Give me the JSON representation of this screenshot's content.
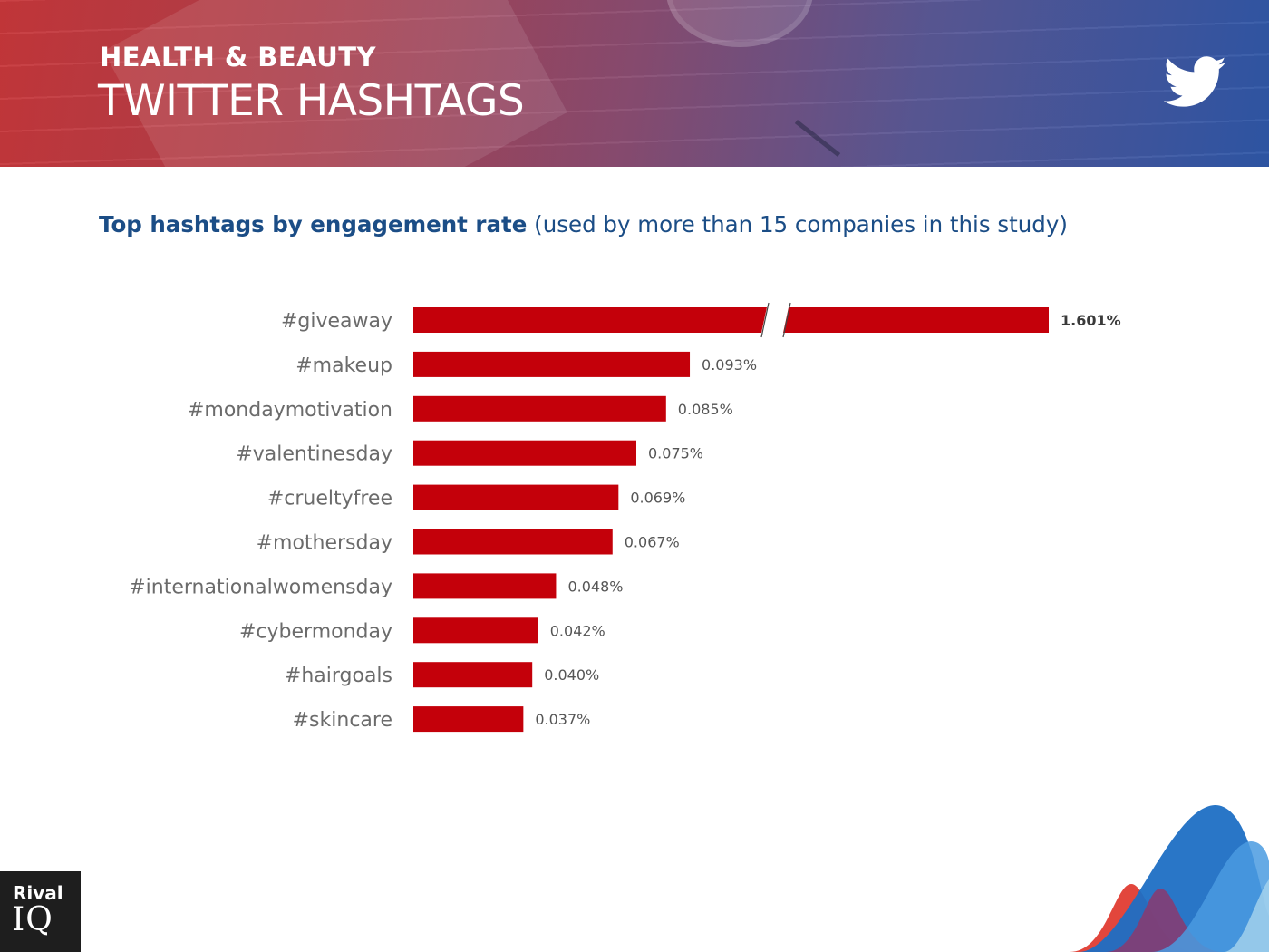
{
  "header": {
    "kicker": "HEALTH & BEAUTY",
    "title": "TWITTER HASHTAGS"
  },
  "subtitle": {
    "strong": "Top hashtags by engagement rate",
    "rest": "(used by more than 15 companies in this study)"
  },
  "logo": {
    "top": "Rival",
    "bottom": "IQ"
  },
  "icons": {
    "header": "twitter-bird-icon",
    "corner": "rival-iq-wave-graphic"
  },
  "colors": {
    "bar": "#c4000a",
    "subtitle": "#1b4d86",
    "category_label": "#6b6b6b",
    "value_label": "#555555",
    "value_label_highlight": "#3a3a3a"
  },
  "chart_data": {
    "type": "bar",
    "orientation": "horizontal",
    "axis_break": true,
    "categories": [
      "#giveaway",
      "#makeup",
      "#mondaymotivation",
      "#valentinesday",
      "#crueltyfree",
      "#mothersday",
      "#internationalwomensday",
      "#cybermonday",
      "#hairgoals",
      "#skincare"
    ],
    "values": [
      1.601,
      0.093,
      0.085,
      0.075,
      0.069,
      0.067,
      0.048,
      0.042,
      0.04,
      0.037
    ],
    "value_labels": [
      "1.601%",
      "0.093%",
      "0.085%",
      "0.075%",
      "0.069%",
      "0.067%",
      "0.048%",
      "0.042%",
      "0.040%",
      "0.037%"
    ],
    "title": "",
    "xlabel": "",
    "ylabel": "",
    "grid": false,
    "legend": "none"
  }
}
